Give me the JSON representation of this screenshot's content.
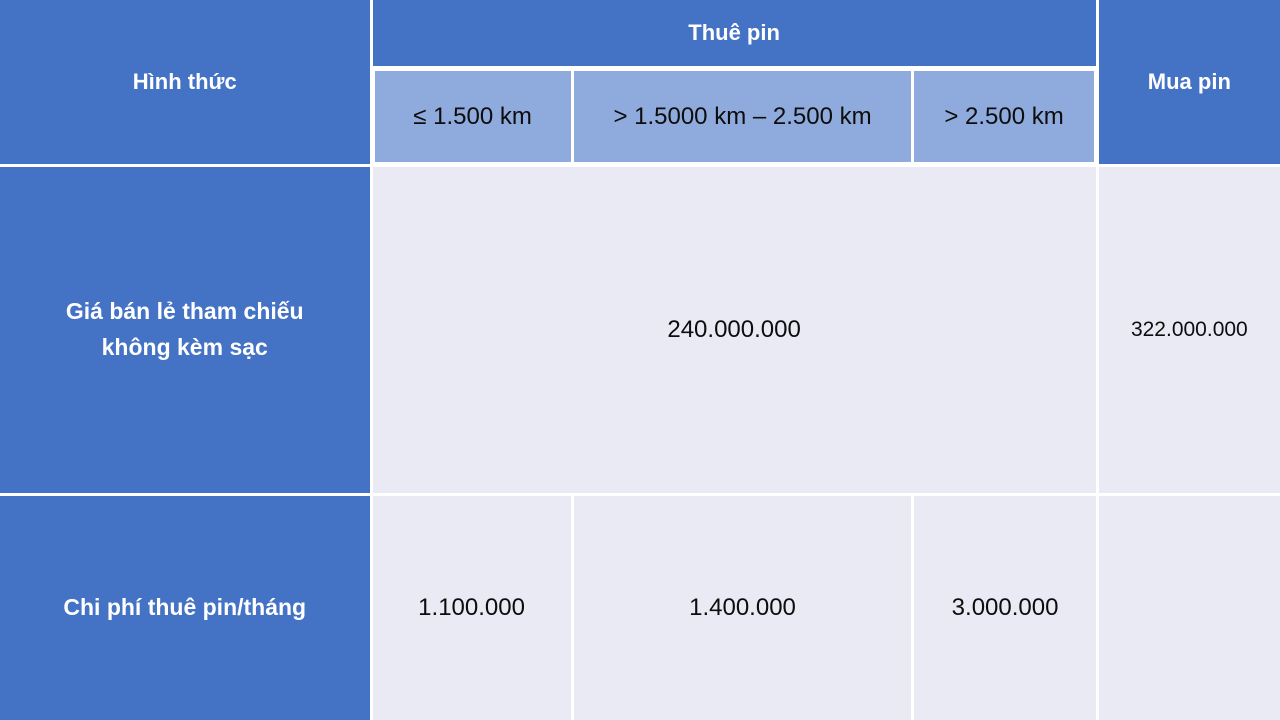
{
  "table": {
    "header": {
      "col_form": "Hình thức",
      "col_rent": "Thuê pin",
      "col_buy": "Mua pin",
      "rent_tiers": [
        "≤ 1.500 km",
        "> 1.5000 km – 2.500 km",
        "> 2.500 km"
      ]
    },
    "rows": [
      {
        "label": "Giá bán lẻ tham chiếu\nkhông kèm sạc",
        "rent_value": "240.000.000",
        "buy_value": "322.000.000"
      },
      {
        "label": "Chi phí thuê pin/tháng",
        "tier_values": [
          "1.100.000",
          "1.400.000",
          "3.000.000"
        ],
        "buy_value": ""
      }
    ]
  },
  "colors": {
    "header_blue": "#4472C4",
    "subheader_blue": "#8FAADC",
    "body_bg": "#E9EAF4",
    "grid_white": "#FFFFFF"
  },
  "chart_data": {
    "type": "table",
    "title": "Thuê pin / Mua pin",
    "columns": [
      "Hình thức",
      "Thuê pin: ≤ 1.500 km",
      "Thuê pin: > 1.5000 km – 2.500 km",
      "Thuê pin: > 2.500 km",
      "Mua pin"
    ],
    "rows": [
      [
        "Giá bán lẻ tham chiếu không kèm sạc",
        "240.000.000",
        "240.000.000",
        "240.000.000",
        "322.000.000"
      ],
      [
        "Chi phí thuê pin/tháng",
        "1.100.000",
        "1.400.000",
        "3.000.000",
        ""
      ]
    ],
    "notes": "Cell 240.000.000 is merged across the three rental-distance tier columns; Mua pin cell in last row is empty."
  }
}
